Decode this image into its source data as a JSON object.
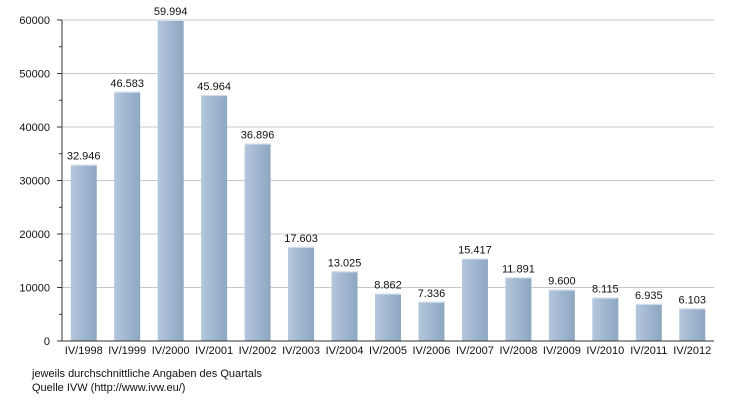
{
  "chart_data": {
    "type": "bar",
    "categories": [
      "IV/1998",
      "IV/1999",
      "IV/2000",
      "IV/2001",
      "IV/2002",
      "IV/2003",
      "IV/2004",
      "IV/2005",
      "IV/2006",
      "IV/2007",
      "IV/2008",
      "IV/2009",
      "IV/2010",
      "IV/2011",
      "IV/2012"
    ],
    "values": [
      32946,
      46583,
      59994,
      45964,
      36896,
      17603,
      13025,
      8862,
      7336,
      15417,
      11891,
      9600,
      8115,
      6935,
      6103
    ],
    "value_labels": [
      "32.946",
      "46.583",
      "59.994",
      "45.964",
      "36.896",
      "17.603",
      "13.025",
      "8.862",
      "7.336",
      "15.417",
      "11.891",
      "9.600",
      "8.115",
      "6.935",
      "6.103"
    ],
    "yticks": [
      0,
      10000,
      20000,
      30000,
      40000,
      50000,
      60000
    ],
    "ytick_labels": [
      "0",
      "10000",
      "20000",
      "30000",
      "40000",
      "50000",
      "60000"
    ],
    "ylim": [
      0,
      60000
    ],
    "grid": true,
    "bar_color": "#9fb6cf",
    "title": "",
    "xlabel": "",
    "ylabel": ""
  },
  "footnote": {
    "note": "jeweils durchschnittliche Angaben des Quartals",
    "source": "Quelle IVW (http://www.ivw.eu/)"
  }
}
